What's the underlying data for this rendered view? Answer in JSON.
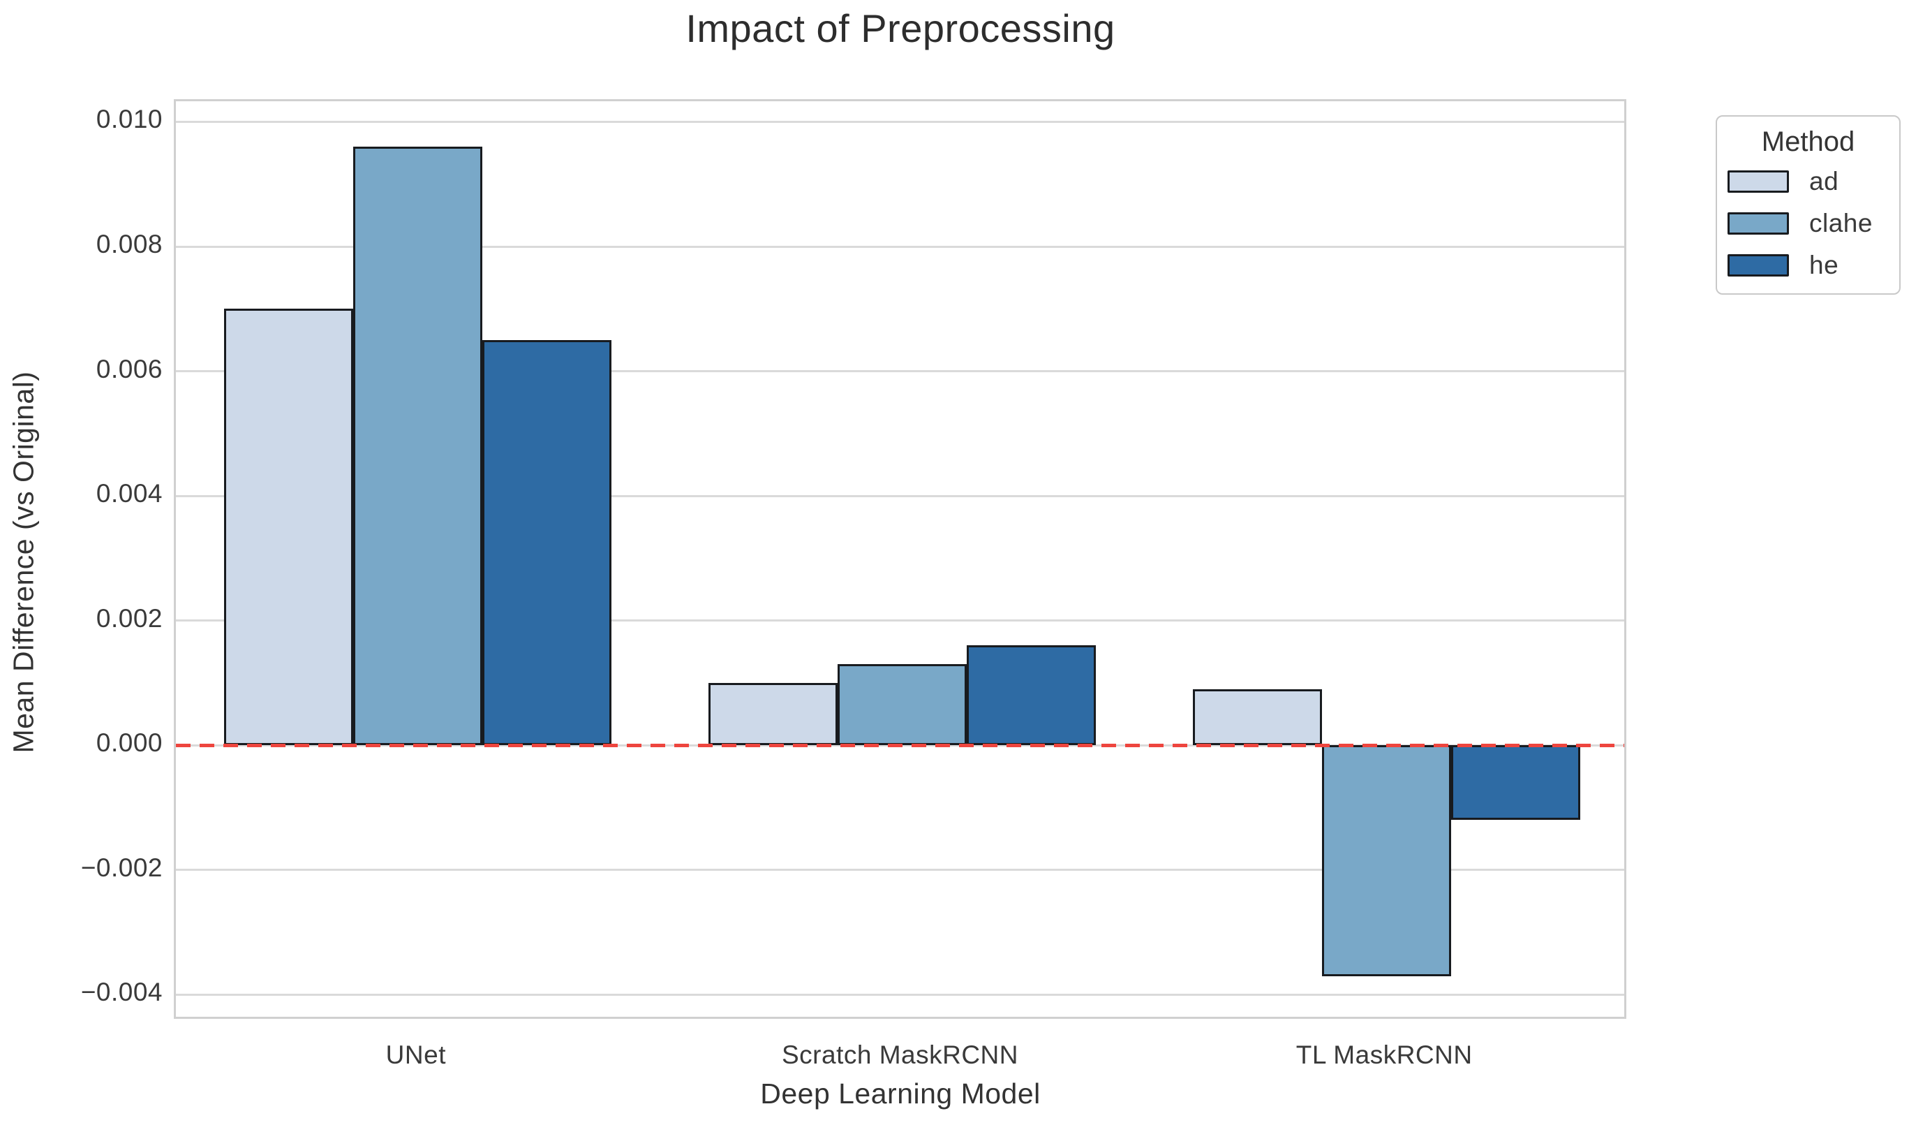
{
  "figure": {
    "background": "#ffffff",
    "text_color": "#363636"
  },
  "chart_data": {
    "type": "bar",
    "title": "Impact of Preprocessing",
    "xlabel": "Deep Learning Model",
    "ylabel": "Mean Difference (vs Original)",
    "categories": [
      "UNet",
      "Scratch MaskRCNN",
      "TL MaskRCNN"
    ],
    "series": [
      {
        "name": "ad",
        "color": "#cdd9e9",
        "values": [
          0.007,
          0.001,
          0.0009
        ]
      },
      {
        "name": "clahe",
        "color": "#79a8c8",
        "values": [
          0.0096,
          0.0013,
          -0.0037
        ]
      },
      {
        "name": "he",
        "color": "#2e6ba4",
        "values": [
          0.0065,
          0.0016,
          -0.0012
        ]
      }
    ],
    "yticks": [
      {
        "value": 0.01,
        "label": "0.010"
      },
      {
        "value": 0.008,
        "label": "0.008"
      },
      {
        "value": 0.006,
        "label": "0.006"
      },
      {
        "value": 0.004,
        "label": "0.004"
      },
      {
        "value": 0.002,
        "label": "0.002"
      },
      {
        "value": 0.0,
        "label": "0.000"
      },
      {
        "value": -0.002,
        "label": "−0.002"
      },
      {
        "value": -0.004,
        "label": "−0.004"
      }
    ],
    "ylim": [
      -0.00442,
      0.01033
    ],
    "grid": "horizontal",
    "gridline_color": "#dadada",
    "bar_edge_color": "#181b1f",
    "zero_line": {
      "value": 0,
      "color": "#ee453e",
      "style": "dashed"
    },
    "legend": {
      "title": "Method",
      "position": "outside-upper-right"
    },
    "group_width_fraction": 0.8
  }
}
